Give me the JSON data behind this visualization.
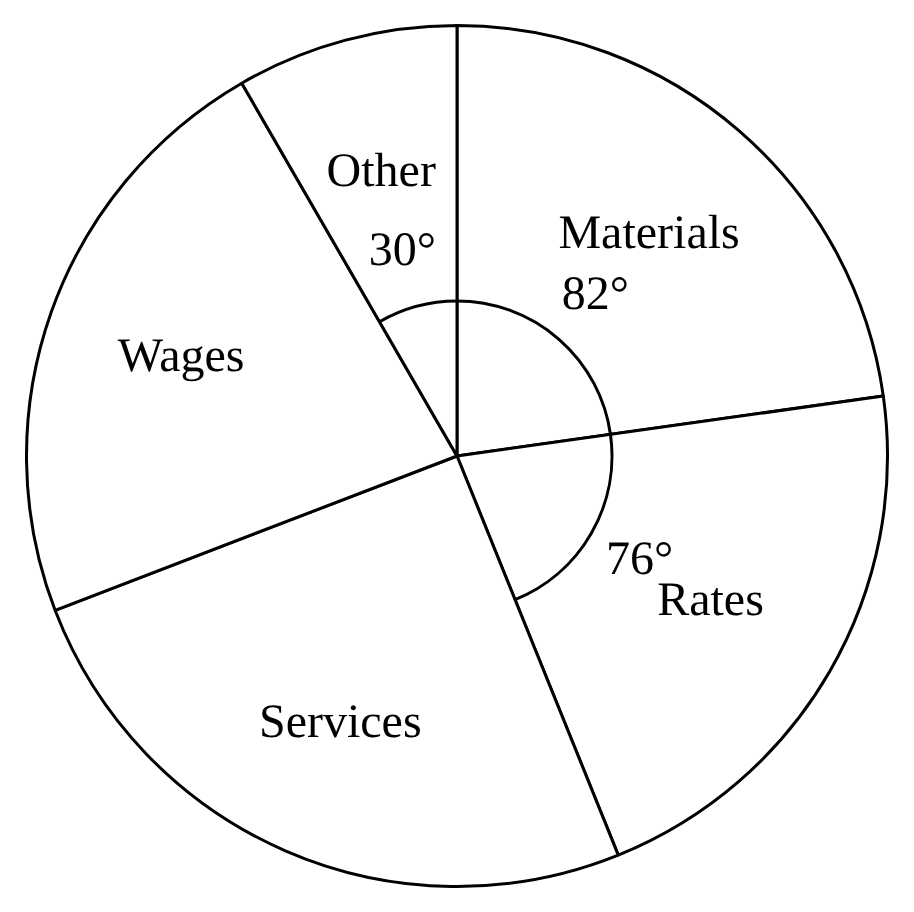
{
  "chart_data": {
    "type": "pie",
    "categories": [
      "Materials",
      "Rates",
      "Services",
      "Wages",
      "Other"
    ],
    "values": [
      82,
      76,
      91,
      81,
      30
    ],
    "value_labels": [
      "82°",
      "76°",
      null,
      null,
      "30°"
    ],
    "colors": [
      "#ffffff",
      "#ffffff",
      "#ffffff",
      "#ffffff",
      "#ffffff"
    ],
    "legend": false
  }
}
